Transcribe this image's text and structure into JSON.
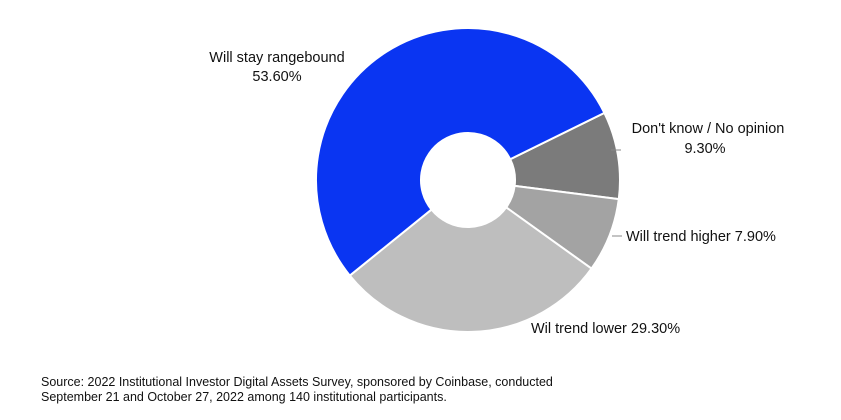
{
  "chart_data": {
    "type": "pie",
    "donut": true,
    "categories": [
      "Will stay rangebound",
      "Don't know / No opinion",
      "Will trend higher",
      "Wil trend lower"
    ],
    "values": [
      53.6,
      9.3,
      7.9,
      29.3
    ],
    "value_labels": [
      "53.60%",
      "9.30%",
      "7.90%",
      "29.30%"
    ],
    "colors": [
      "#0a35f2",
      "#7b7b7b",
      "#a3a3a3",
      "#bebebe"
    ]
  },
  "source": {
    "line1": "Source: 2022 Institutional Investor Digital Assets Survey, sponsored by Coinbase, conducted",
    "line2": "September 21 and October 27, 2022 among 140 institutional participants."
  }
}
